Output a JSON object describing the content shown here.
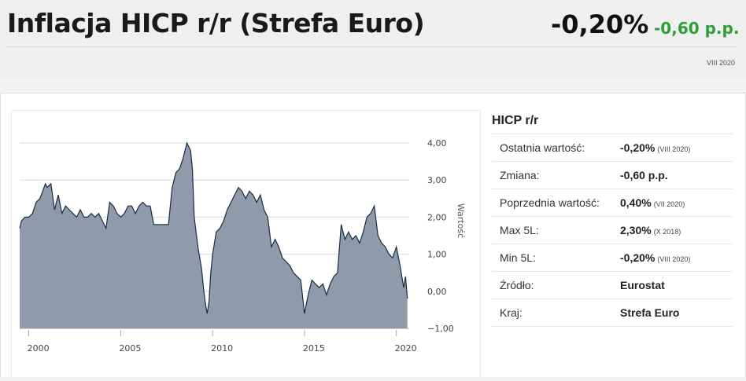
{
  "header": {
    "title": "Inflacja HICP r/r (Strefa Euro)",
    "value": "-0,20%",
    "change": "-0,60 p.p.",
    "period": "VIII 2020"
  },
  "side": {
    "title": "HICP r/r",
    "rows": [
      {
        "key": "Ostatnia wartość:",
        "value": "-0,20%",
        "date": "(VIII 2020)"
      },
      {
        "key": "Zmiana:",
        "value": "-0,60 p.p.",
        "date": ""
      },
      {
        "key": "Poprzednia wartość:",
        "value": "0,40%",
        "date": "(VII 2020)"
      },
      {
        "key": "Max 5L:",
        "value": "2,30%",
        "date": "(X 2018)"
      },
      {
        "key": "Min 5L:",
        "value": "-0,20%",
        "date": "(VIII 2020)"
      },
      {
        "key": "Źródło:",
        "value": "Eurostat",
        "date": ""
      },
      {
        "key": "Kraj:",
        "value": "Strefa Euro",
        "date": ""
      }
    ]
  },
  "colors": {
    "area_fill": "#8f9bab",
    "area_line": "#1b2a44",
    "change_positive": "#2e9e3a"
  },
  "chart_data": {
    "type": "area",
    "title": "",
    "xlabel": "",
    "ylabel": "Wartość",
    "y_axis_position": "right",
    "grid": true,
    "xlim": [
      1999.5,
      2020.7
    ],
    "ylim": [
      -1.0,
      4.0
    ],
    "y_ticks": [
      4.0,
      3.0,
      2.0,
      1.0,
      0.0,
      -1.0
    ],
    "y_tick_labels": [
      "4,00",
      "3,00",
      "2,00",
      "1,00",
      "0,00",
      "−1,00"
    ],
    "x_ticks": [
      2000,
      2005,
      2010,
      2015,
      2020
    ],
    "x_tick_labels": [
      "2000",
      "2005",
      "2010",
      "2015",
      "2020"
    ],
    "series": [
      {
        "name": "",
        "x": [
          1999.5,
          1999.6,
          1999.8,
          2000.0,
          2000.2,
          2000.4,
          2000.6,
          2000.9,
          2001.0,
          2001.2,
          2001.4,
          2001.6,
          2001.8,
          2002.0,
          2002.2,
          2002.4,
          2002.6,
          2002.8,
          2003.0,
          2003.2,
          2003.4,
          2003.6,
          2003.8,
          2004.0,
          2004.2,
          2004.4,
          2004.6,
          2004.8,
          2005.0,
          2005.2,
          2005.4,
          2005.6,
          2005.8,
          2006.0,
          2006.2,
          2006.4,
          2006.6,
          2006.8,
          2007.0,
          2007.2,
          2007.4,
          2007.6,
          2007.8,
          2008.0,
          2008.2,
          2008.4,
          2008.6,
          2008.8,
          2008.9,
          2009.0,
          2009.2,
          2009.4,
          2009.5,
          2009.6,
          2009.7,
          2009.8,
          2009.9,
          2010.0,
          2010.2,
          2010.4,
          2010.6,
          2010.8,
          2011.0,
          2011.2,
          2011.4,
          2011.6,
          2011.8,
          2012.0,
          2012.2,
          2012.4,
          2012.6,
          2012.8,
          2013.0,
          2013.2,
          2013.4,
          2013.6,
          2013.8,
          2014.0,
          2014.2,
          2014.4,
          2014.6,
          2014.8,
          2015.0,
          2015.2,
          2015.4,
          2015.6,
          2015.8,
          2016.0,
          2016.2,
          2016.4,
          2016.6,
          2016.8,
          2017.0,
          2017.2,
          2017.4,
          2017.6,
          2017.8,
          2018.0,
          2018.2,
          2018.4,
          2018.6,
          2018.8,
          2019.0,
          2019.2,
          2019.4,
          2019.6,
          2019.8,
          2020.0,
          2020.2,
          2020.4,
          2020.5,
          2020.6
        ],
        "values": [
          1.7,
          1.9,
          2.0,
          2.0,
          2.1,
          2.4,
          2.5,
          2.9,
          2.8,
          2.9,
          2.2,
          2.6,
          2.1,
          2.3,
          2.2,
          2.1,
          2.0,
          2.2,
          2.0,
          2.0,
          2.1,
          2.0,
          2.1,
          1.9,
          1.7,
          2.4,
          2.3,
          2.1,
          2.0,
          2.1,
          2.3,
          2.3,
          2.1,
          2.3,
          2.4,
          2.3,
          2.3,
          1.8,
          1.8,
          1.8,
          1.8,
          1.8,
          2.8,
          3.2,
          3.3,
          3.6,
          4.0,
          3.8,
          3.3,
          2.0,
          1.2,
          0.6,
          0.1,
          -0.3,
          -0.6,
          -0.3,
          0.5,
          1.0,
          1.6,
          1.7,
          1.9,
          2.2,
          2.4,
          2.6,
          2.8,
          2.7,
          2.5,
          2.7,
          2.6,
          2.4,
          2.6,
          2.2,
          2.0,
          1.2,
          1.4,
          1.2,
          0.9,
          0.8,
          0.7,
          0.5,
          0.4,
          0.3,
          -0.6,
          -0.1,
          0.3,
          0.2,
          0.1,
          0.2,
          -0.1,
          0.2,
          0.4,
          0.5,
          1.8,
          1.4,
          1.6,
          1.4,
          1.5,
          1.3,
          1.6,
          2.0,
          2.1,
          2.3,
          1.5,
          1.3,
          1.2,
          1.0,
          0.9,
          1.2,
          0.7,
          0.1,
          0.4,
          -0.2
        ]
      }
    ]
  }
}
